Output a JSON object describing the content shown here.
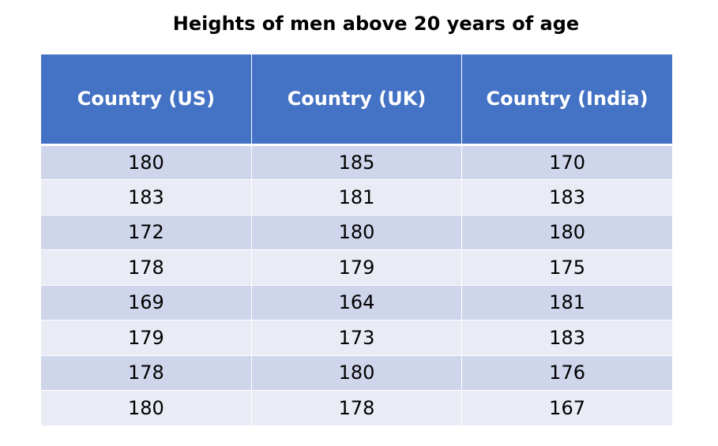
{
  "chart_data": {
    "type": "table",
    "title": "Heights of men above 20 years of age",
    "columns": [
      "Country (US)",
      "Country (UK)",
      "Country (India)"
    ],
    "rows": [
      [
        180,
        185,
        170
      ],
      [
        183,
        181,
        183
      ],
      [
        172,
        180,
        180
      ],
      [
        178,
        179,
        175
      ],
      [
        169,
        164,
        181
      ],
      [
        179,
        173,
        183
      ],
      [
        178,
        180,
        176
      ],
      [
        180,
        178,
        167
      ]
    ],
    "colors": {
      "header_bg": "#4472c4",
      "header_text": "#ffffff",
      "row_band_1": "#cfd5ea",
      "row_band_2": "#e9ebf5"
    }
  }
}
